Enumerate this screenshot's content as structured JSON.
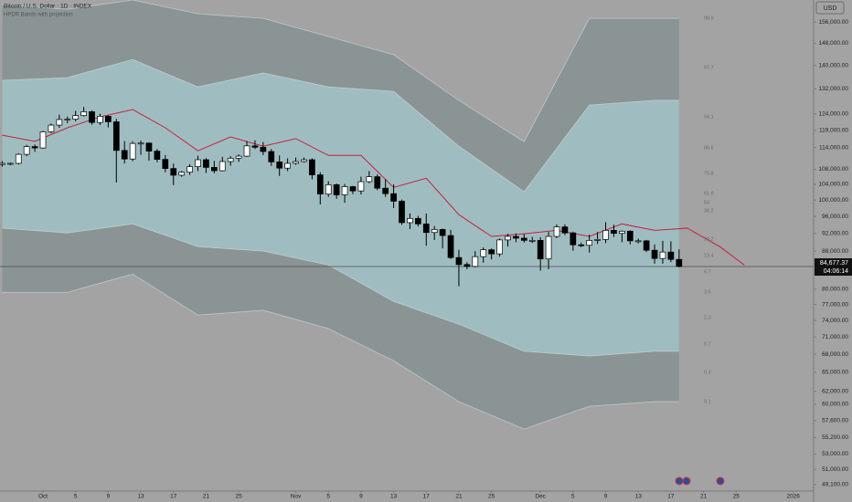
{
  "chart_data": {
    "type": "candlestick",
    "title": "Bitcoin / U.S. Dollar · 1D · INDEX",
    "subtitle": "HPDR Bands with projection",
    "currency": "USD",
    "log_scale": true,
    "grid": false,
    "up_color": "#ffffff",
    "down_color": "#000000",
    "open": [
      109300,
      109600,
      109600,
      112100,
      114300,
      113900,
      118600,
      120600,
      122300,
      122400,
      123500,
      124700,
      121400,
      123300,
      121600,
      113200,
      110800,
      115200,
      115300,
      113000,
      110700,
      108200,
      106400,
      107200,
      108700,
      110600,
      108500,
      107600,
      110100,
      111000,
      111600,
      114500,
      114100,
      112900,
      110000,
      108300,
      109600,
      110100,
      110600,
      106500,
      101500,
      103900,
      101300,
      103400,
      102300,
      104700,
      106000,
      103000,
      101600,
      99700,
      94500,
      95500,
      94200,
      92200,
      92900,
      91500,
      86600,
      85100,
      84700,
      86800,
      88300,
      87400,
      90500,
      91300,
      90900,
      90400,
      90400,
      86300,
      91300,
      93500,
      92100,
      89400,
      89300,
      90400,
      90600,
      92700,
      92000,
      92500,
      90300,
      90300,
      88200,
      86400,
      87800,
      86200
    ],
    "high": [
      110200,
      109800,
      112400,
      114800,
      114900,
      118900,
      121100,
      123800,
      123200,
      125000,
      126200,
      125100,
      124100,
      123600,
      122500,
      115900,
      115800,
      116000,
      115500,
      113600,
      111900,
      109500,
      107500,
      109400,
      111700,
      111000,
      110300,
      111400,
      111600,
      112100,
      115900,
      116100,
      115600,
      113600,
      111800,
      111000,
      111200,
      111200,
      111000,
      107200,
      104800,
      104200,
      104100,
      103600,
      106000,
      107500,
      106600,
      105300,
      104000,
      100100,
      96700,
      96100,
      96700,
      93700,
      93100,
      92800,
      88300,
      85600,
      88000,
      88800,
      88600,
      90800,
      91900,
      92000,
      91900,
      91200,
      91100,
      92300,
      94100,
      94100,
      92400,
      89900,
      91700,
      92300,
      94600,
      94000,
      92700,
      92700,
      90800,
      90500,
      89500,
      90300,
      90200,
      88400
    ],
    "low": [
      108700,
      109100,
      109300,
      111600,
      112800,
      113700,
      118200,
      119800,
      121200,
      121700,
      123200,
      120700,
      120600,
      119900,
      104500,
      109600,
      110200,
      112000,
      110300,
      109900,
      107200,
      103800,
      106000,
      106500,
      107500,
      107000,
      106900,
      107400,
      109000,
      110000,
      111400,
      113600,
      111900,
      108900,
      106200,
      107500,
      109200,
      109800,
      105300,
      98900,
      100800,
      100300,
      99300,
      101500,
      101400,
      104300,
      102500,
      100800,
      98000,
      94000,
      93000,
      93600,
      89200,
      90500,
      88600,
      86300,
      80600,
      84100,
      84500,
      85500,
      86200,
      86800,
      89000,
      90000,
      89900,
      89800,
      83800,
      84100,
      90900,
      91600,
      88100,
      88900,
      87700,
      89600,
      89800,
      91200,
      90000,
      89500,
      89700,
      87800,
      85300,
      85300,
      85600,
      84500
    ],
    "close": [
      109600,
      109600,
      112100,
      114300,
      113900,
      118600,
      120600,
      122300,
      122400,
      123500,
      124700,
      121400,
      123300,
      121600,
      113200,
      110800,
      115200,
      115300,
      113000,
      110700,
      108200,
      106400,
      107200,
      108700,
      110600,
      108500,
      107600,
      110100,
      111000,
      111600,
      114500,
      114100,
      112900,
      110000,
      108300,
      109600,
      110100,
      110600,
      106500,
      101500,
      103900,
      101300,
      103400,
      102300,
      104700,
      106000,
      103000,
      101600,
      99700,
      94500,
      95500,
      94200,
      92200,
      92900,
      91500,
      86600,
      85100,
      84700,
      86800,
      88300,
      87400,
      90500,
      91300,
      90900,
      90400,
      90400,
      86300,
      91300,
      93500,
      92100,
      89400,
      89300,
      90400,
      90600,
      92700,
      92000,
      92500,
      90300,
      90300,
      88200,
      86400,
      87800,
      86200,
      84700
    ],
    "bands": {
      "fill_outer": "#8a9494",
      "fill_inner": "#9fbdc1",
      "edge_color": "#c9d3d3",
      "x": [
        0,
        8,
        16,
        24,
        32,
        40,
        48,
        56,
        64,
        72,
        80,
        83
      ],
      "outer_upper": [
        163000,
        161100,
        164900,
        159300,
        157500,
        150500,
        143800,
        128300,
        115700,
        157500,
        157500,
        157500
      ],
      "inner_upper": [
        134900,
        135800,
        142100,
        132700,
        137400,
        132700,
        131200,
        114400,
        102100,
        126800,
        128300,
        128300
      ],
      "inner_lower": [
        93200,
        92100,
        94200,
        89000,
        88000,
        85000,
        77600,
        73300,
        68500,
        67700,
        68500,
        68500
      ],
      "outer_lower": [
        79400,
        79400,
        83100,
        75000,
        75900,
        72500,
        66900,
        60400,
        56400,
        59700,
        60400,
        60400
      ]
    },
    "projection": {
      "color": "#c4203a",
      "x": [
        0,
        4,
        8,
        12,
        16,
        20,
        24,
        28,
        32,
        36,
        40,
        44,
        48,
        52,
        56,
        60,
        64,
        68,
        72,
        76,
        80,
        84,
        88,
        91
      ],
      "values": [
        117600,
        115800,
        119800,
        123100,
        125400,
        119800,
        113100,
        117100,
        114400,
        116600,
        111800,
        111800,
        103200,
        105600,
        96400,
        91300,
        91900,
        92700,
        91300,
        94200,
        92700,
        93200,
        89000,
        85000
      ]
    },
    "band_labels": [
      "99.9",
      "97.7",
      "94.1",
      "86.6",
      "75.8",
      "61.8",
      "50",
      "38.2",
      "24.2",
      "13.4",
      "6.7",
      "3.6",
      "2.3",
      "0.7",
      "0.3",
      "0.1"
    ],
    "last_price": {
      "value": 84677.37,
      "label": "84,677.37"
    },
    "countdown": "04:06:14",
    "xlim": [
      -0.27,
      99.5
    ],
    "xticks": [
      {
        "value": 5,
        "label": "Oct"
      },
      {
        "value": 9,
        "label": "5"
      },
      {
        "value": 13,
        "label": "9"
      },
      {
        "value": 17,
        "label": "13"
      },
      {
        "value": 21,
        "label": "17"
      },
      {
        "value": 25,
        "label": "21"
      },
      {
        "value": 29,
        "label": "25"
      },
      {
        "value": 36,
        "label": "Nov"
      },
      {
        "value": 40,
        "label": "5"
      },
      {
        "value": 44,
        "label": "9"
      },
      {
        "value": 48,
        "label": "13"
      },
      {
        "value": 52,
        "label": "17"
      },
      {
        "value": 56,
        "label": "21"
      },
      {
        "value": 60,
        "label": "25"
      },
      {
        "value": 66,
        "label": "Dec"
      },
      {
        "value": 70,
        "label": "5"
      },
      {
        "value": 74,
        "label": "9"
      },
      {
        "value": 78,
        "label": "13"
      },
      {
        "value": 82,
        "label": "17"
      },
      {
        "value": 86,
        "label": "21"
      },
      {
        "value": 90,
        "label": "25"
      },
      {
        "value": 97,
        "label": "2026"
      }
    ],
    "ylim": [
      48300,
      164900
    ],
    "yticks": [
      {
        "value": 156000,
        "label": "156,000.00"
      },
      {
        "value": 148000,
        "label": "148,000.00"
      },
      {
        "value": 140000,
        "label": "140,000.00"
      },
      {
        "value": 132000,
        "label": "132,000.00"
      },
      {
        "value": 124000,
        "label": "124,000.00"
      },
      {
        "value": 119000,
        "label": "119,000.00"
      },
      {
        "value": 114000,
        "label": "114,000.00"
      },
      {
        "value": 108000,
        "label": "108,000.00"
      },
      {
        "value": 104000,
        "label": "104,000.00"
      },
      {
        "value": 100000,
        "label": "100,000.00"
      },
      {
        "value": 96000,
        "label": "96,000.00"
      },
      {
        "value": 92000,
        "label": "92,000.00"
      },
      {
        "value": 88000,
        "label": "88,000.00"
      },
      {
        "value": 80000,
        "label": "80,000.00"
      },
      {
        "value": 77000,
        "label": "77,000.00"
      },
      {
        "value": 74000,
        "label": "74,000.00"
      },
      {
        "value": 71000,
        "label": "71,000.00"
      },
      {
        "value": 68000,
        "label": "68,000.00"
      },
      {
        "value": 65000,
        "label": "65,000.00"
      },
      {
        "value": 62000,
        "label": "62,000.00"
      },
      {
        "value": 60000,
        "label": "60,000.00"
      },
      {
        "value": 57600,
        "label": "57,600.00"
      },
      {
        "value": 55200,
        "label": "55,200.00"
      },
      {
        "value": 53000,
        "label": "53,000.00"
      },
      {
        "value": 51000,
        "label": "51,000.00"
      },
      {
        "value": 49100,
        "label": "49,100.00"
      }
    ]
  }
}
